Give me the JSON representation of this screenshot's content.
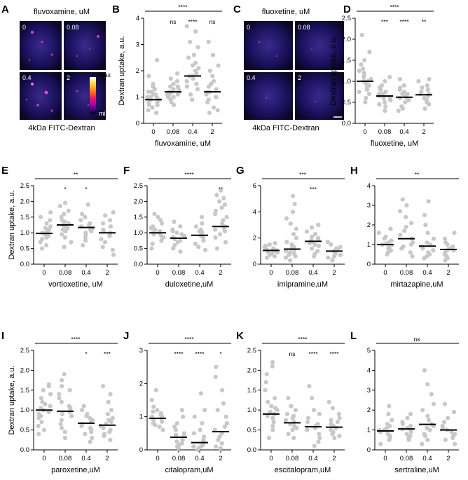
{
  "colors": {
    "dot": "#c8c8c8",
    "mean_line": "#000000",
    "axis": "#000000",
    "micro_bg": "#0a0624",
    "colorbar": [
      "#ffffe6",
      "#ffd23c",
      "#ff7814",
      "#e6146e",
      "#a00aa0",
      "#46007d",
      "#000000"
    ]
  },
  "micrographs": [
    {
      "letter": "A",
      "drug_title": "fluvoxamine, uM",
      "caption": "4kDa FITC-Dextran",
      "tiles": [
        "0",
        "0.08",
        "0.4",
        "2"
      ],
      "colorbar": {
        "max": "max",
        "min": "min"
      }
    },
    {
      "letter": "C",
      "drug_title": "fluoxetine, uM",
      "caption": "4kDa FITC-Dextran",
      "tiles": [
        "0",
        "0.08",
        "0.4",
        "2"
      ]
    }
  ],
  "chart_data": [
    {
      "letter": "B",
      "type": "scatter",
      "xlabel": "fluvoxamine, uM",
      "ylabel": "Dextran uptake, a.u.",
      "categories": [
        "0",
        "0.08",
        "0.4",
        "2"
      ],
      "ylim": [
        0,
        4
      ],
      "yticks": [
        0,
        1,
        2,
        3,
        4
      ],
      "means": [
        0.9,
        1.2,
        1.8,
        1.2
      ],
      "sig": [
        "",
        "ns",
        "****",
        "ns"
      ],
      "overall_sig": "****",
      "points": [
        [
          0.4,
          0.5,
          0.6,
          0.7,
          0.7,
          0.8,
          0.8,
          0.9,
          0.9,
          1.0,
          1.0,
          1.0,
          1.1,
          1.1,
          1.2,
          1.2,
          1.3,
          1.4,
          1.5,
          1.8,
          2.4
        ],
        [
          0.7,
          0.8,
          0.9,
          1.0,
          1.0,
          1.1,
          1.1,
          1.1,
          1.2,
          1.2,
          1.2,
          1.3,
          1.3,
          1.4,
          1.4,
          1.5,
          1.6,
          1.7,
          1.9
        ],
        [
          0.9,
          1.1,
          1.3,
          1.4,
          1.5,
          1.6,
          1.7,
          1.8,
          1.8,
          1.9,
          2.0,
          2.1,
          2.2,
          2.3,
          2.5,
          2.6,
          2.9,
          3.1,
          3.5,
          3.7
        ],
        [
          0.4,
          0.5,
          0.6,
          0.8,
          0.9,
          1.0,
          1.0,
          1.1,
          1.2,
          1.2,
          1.3,
          1.4,
          1.5,
          1.6,
          1.8,
          2.0,
          2.2,
          2.6,
          3.1
        ]
      ]
    },
    {
      "letter": "D",
      "type": "scatter",
      "xlabel": "fluoxetine, uM",
      "ylabel": "Dextran uptake, a.u.",
      "categories": [
        "0",
        "0.08",
        "0.4",
        "2"
      ],
      "ylim": [
        0,
        2.5
      ],
      "yticks": [
        0,
        0.5,
        1.0,
        1.5,
        2.0,
        2.5
      ],
      "means": [
        1.0,
        0.65,
        0.62,
        0.68
      ],
      "sig": [
        "",
        "***",
        "****",
        "**"
      ],
      "overall_sig": "****",
      "points": [
        [
          0.5,
          0.6,
          0.7,
          0.75,
          0.8,
          0.85,
          0.9,
          0.95,
          1.0,
          1.0,
          1.05,
          1.1,
          1.15,
          1.2,
          1.25,
          1.3,
          1.4,
          1.5,
          1.7,
          2.1
        ],
        [
          0.3,
          0.4,
          0.45,
          0.5,
          0.55,
          0.6,
          0.6,
          0.65,
          0.7,
          0.7,
          0.75,
          0.8,
          0.85,
          0.9,
          1.0,
          1.1
        ],
        [
          0.3,
          0.35,
          0.4,
          0.5,
          0.55,
          0.6,
          0.6,
          0.65,
          0.7,
          0.7,
          0.75,
          0.8,
          0.85,
          0.9,
          1.05
        ],
        [
          0.35,
          0.45,
          0.5,
          0.55,
          0.6,
          0.65,
          0.7,
          0.7,
          0.75,
          0.8,
          0.85,
          0.9,
          1.0,
          1.05
        ]
      ]
    },
    {
      "letter": "E",
      "type": "scatter",
      "xlabel": "vortioxetine, uM",
      "ylabel": "Dextran uptake, a.u.",
      "categories": [
        "0",
        "0.08",
        "0.4",
        "2"
      ],
      "ylim": [
        0,
        2.5
      ],
      "yticks": [
        0,
        0.5,
        1.0,
        1.5,
        2.0,
        2.5
      ],
      "means": [
        0.98,
        1.25,
        1.17,
        1.0
      ],
      "sig": [
        "",
        "*",
        "*",
        ""
      ],
      "overall_sig": "**",
      "points": [
        [
          0.5,
          0.6,
          0.7,
          0.8,
          0.85,
          0.9,
          0.95,
          1.0,
          1.0,
          1.05,
          1.1,
          1.15,
          1.2,
          1.3,
          1.4,
          1.5,
          1.65
        ],
        [
          0.55,
          0.7,
          0.85,
          0.95,
          1.05,
          1.1,
          1.15,
          1.2,
          1.25,
          1.3,
          1.35,
          1.4,
          1.5,
          1.6,
          1.7,
          1.85,
          1.95
        ],
        [
          0.6,
          0.75,
          0.85,
          0.95,
          1.0,
          1.05,
          1.1,
          1.15,
          1.2,
          1.25,
          1.3,
          1.4,
          1.5,
          1.6,
          1.9
        ],
        [
          0.3,
          0.45,
          0.55,
          0.7,
          0.8,
          0.9,
          0.95,
          1.0,
          1.05,
          1.1,
          1.2,
          1.3,
          1.4,
          1.55,
          1.65
        ]
      ]
    },
    {
      "letter": "F",
      "type": "scatter",
      "xlabel": "duloxetine,uM",
      "ylabel": "",
      "categories": [
        "0",
        "0.08",
        "0.4",
        "2"
      ],
      "ylim": [
        0,
        2.5
      ],
      "yticks": [
        0,
        0.5,
        1.0,
        1.5,
        2.0,
        2.5
      ],
      "means": [
        1.0,
        0.83,
        0.92,
        1.2
      ],
      "sig": [
        "",
        "",
        "",
        "**"
      ],
      "overall_sig": "****",
      "points": [
        [
          0.5,
          0.65,
          0.75,
          0.85,
          0.9,
          0.95,
          1.0,
          1.0,
          1.05,
          1.1,
          1.15,
          1.2,
          1.3,
          1.4,
          1.5,
          1.6
        ],
        [
          0.4,
          0.5,
          0.6,
          0.7,
          0.75,
          0.8,
          0.85,
          0.9,
          0.95,
          1.0,
          1.05,
          1.1,
          1.2,
          1.35
        ],
        [
          0.45,
          0.55,
          0.65,
          0.75,
          0.85,
          0.9,
          0.95,
          1.0,
          1.05,
          1.1,
          1.2,
          1.3,
          1.5
        ],
        [
          0.5,
          0.7,
          0.85,
          0.95,
          1.05,
          1.1,
          1.15,
          1.2,
          1.3,
          1.4,
          1.5,
          1.6,
          1.7,
          1.8,
          1.9,
          2.0,
          2.1,
          2.2,
          2.35
        ]
      ]
    },
    {
      "letter": "G",
      "type": "scatter",
      "xlabel": "imipramine,uM",
      "ylabel": "",
      "categories": [
        "0",
        "0.08",
        "0.4",
        "2"
      ],
      "ylim": [
        0,
        6
      ],
      "yticks": [
        0,
        2,
        4,
        6
      ],
      "means": [
        1.05,
        1.15,
        1.75,
        1.0
      ],
      "sig": [
        "",
        "",
        "***",
        ""
      ],
      "overall_sig": "***",
      "points": [
        [
          0.5,
          0.6,
          0.7,
          0.8,
          0.9,
          0.95,
          1.0,
          1.0,
          1.05,
          1.1,
          1.1,
          1.2,
          1.3,
          1.4,
          1.5,
          1.6
        ],
        [
          0.3,
          0.5,
          0.6,
          0.7,
          0.8,
          0.9,
          1.0,
          1.1,
          1.2,
          1.3,
          1.5,
          1.7,
          2.0,
          2.3,
          2.7,
          3.1,
          3.5,
          4.0,
          4.6,
          5.2
        ],
        [
          0.6,
          0.8,
          1.0,
          1.2,
          1.4,
          1.5,
          1.6,
          1.7,
          1.8,
          1.9,
          2.0,
          2.1,
          2.3,
          2.5,
          2.8,
          3.0
        ],
        [
          0.3,
          0.5,
          0.6,
          0.7,
          0.8,
          0.9,
          1.0,
          1.0,
          1.1,
          1.2,
          1.3,
          1.5,
          1.7
        ]
      ]
    },
    {
      "letter": "H",
      "type": "scatter",
      "xlabel": "mirtazapine,uM",
      "ylabel": "",
      "categories": [
        "0",
        "0.08",
        "0.4",
        "2"
      ],
      "ylim": [
        0,
        4
      ],
      "yticks": [
        0,
        1,
        2,
        3,
        4
      ],
      "means": [
        1.0,
        1.3,
        0.92,
        0.75
      ],
      "sig": [
        "",
        "",
        "",
        ""
      ],
      "overall_sig": "**",
      "points": [
        [
          0.5,
          0.6,
          0.7,
          0.8,
          0.9,
          0.95,
          1.0,
          1.05,
          1.1,
          1.2,
          1.3,
          1.4,
          1.6,
          1.8
        ],
        [
          0.4,
          0.6,
          0.8,
          0.9,
          1.0,
          1.1,
          1.3,
          1.5,
          1.7,
          1.9,
          2.1,
          2.4,
          2.7,
          3.0,
          3.3
        ],
        [
          0.3,
          0.4,
          0.5,
          0.6,
          0.7,
          0.8,
          0.9,
          1.0,
          1.1,
          1.3,
          1.6,
          2.0,
          2.5,
          3.2
        ],
        [
          0.2,
          0.3,
          0.4,
          0.5,
          0.6,
          0.7,
          0.75,
          0.8,
          0.9,
          1.0,
          1.1,
          1.3,
          1.6
        ]
      ]
    },
    {
      "letter": "I",
      "type": "scatter",
      "xlabel": "paroxetine,uM",
      "ylabel": "Dextran uptake, a.u.",
      "categories": [
        "0",
        "0.08",
        "0.4",
        "2"
      ],
      "ylim": [
        0,
        2.5
      ],
      "yticks": [
        0,
        0.5,
        1.0,
        1.5,
        2.0,
        2.5
      ],
      "means": [
        1.0,
        0.97,
        0.67,
        0.62
      ],
      "sig": [
        "",
        "",
        "*",
        "***"
      ],
      "overall_sig": "****",
      "points": [
        [
          0.4,
          0.5,
          0.6,
          0.7,
          0.8,
          0.85,
          0.9,
          0.95,
          1.0,
          1.05,
          1.1,
          1.15,
          1.2,
          1.3,
          1.4,
          1.5,
          1.6,
          1.65
        ],
        [
          0.3,
          0.45,
          0.55,
          0.65,
          0.75,
          0.85,
          0.9,
          0.95,
          1.0,
          1.05,
          1.1,
          1.2,
          1.3,
          1.4,
          1.5,
          1.6,
          1.75,
          1.9
        ],
        [
          0.2,
          0.3,
          0.4,
          0.45,
          0.5,
          0.55,
          0.6,
          0.65,
          0.7,
          0.75,
          0.8,
          0.85,
          0.9,
          1.0,
          1.1
        ],
        [
          0.25,
          0.35,
          0.4,
          0.45,
          0.5,
          0.55,
          0.6,
          0.65,
          0.7,
          0.75,
          0.8,
          0.9,
          1.0,
          1.2,
          1.4,
          1.6
        ]
      ]
    },
    {
      "letter": "J",
      "type": "scatter",
      "xlabel": "citalopram,uM",
      "ylabel": "",
      "categories": [
        "0",
        "0.08",
        "0.4",
        "2"
      ],
      "ylim": [
        0,
        3
      ],
      "yticks": [
        0,
        1,
        2,
        3
      ],
      "means": [
        0.95,
        0.38,
        0.22,
        0.55
      ],
      "sig": [
        "",
        "****",
        "****",
        "*"
      ],
      "overall_sig": "****",
      "points": [
        [
          0.6,
          0.7,
          0.75,
          0.8,
          0.85,
          0.9,
          0.95,
          1.0,
          1.0,
          1.05,
          1.1,
          1.15,
          1.2,
          1.3,
          1.5,
          1.8
        ],
        [
          0.05,
          0.1,
          0.15,
          0.2,
          0.25,
          0.3,
          0.35,
          0.4,
          0.45,
          0.5,
          0.6,
          0.7,
          0.8,
          1.0,
          1.2
        ],
        [
          0.0,
          0.05,
          0.1,
          0.1,
          0.15,
          0.2,
          0.25,
          0.3,
          0.4,
          0.5,
          0.6,
          0.8,
          1.0,
          1.2,
          1.7
        ],
        [
          0.05,
          0.1,
          0.2,
          0.3,
          0.4,
          0.5,
          0.6,
          0.7,
          0.8,
          1.0,
          1.2,
          1.4,
          1.8,
          2.2,
          2.5
        ]
      ]
    },
    {
      "letter": "K",
      "type": "scatter",
      "xlabel": "escitalopram,uM",
      "ylabel": "",
      "categories": [
        "0",
        "0.08",
        "0.4",
        "2"
      ],
      "ylim": [
        0,
        2.5
      ],
      "yticks": [
        0,
        0.5,
        1.0,
        1.5,
        2.0,
        2.5
      ],
      "means": [
        0.9,
        0.68,
        0.58,
        0.57
      ],
      "sig": [
        "",
        "ns",
        "****",
        "****"
      ],
      "overall_sig": "****",
      "points": [
        [
          0.3,
          0.5,
          0.6,
          0.7,
          0.8,
          0.85,
          0.9,
          0.95,
          1.0,
          1.05,
          1.1,
          1.2,
          1.3,
          1.5,
          1.7,
          1.9,
          2.1,
          2.2
        ],
        [
          0.3,
          0.4,
          0.5,
          0.55,
          0.6,
          0.65,
          0.7,
          0.75,
          0.8,
          0.85,
          0.9,
          1.0,
          1.1,
          1.3
        ],
        [
          0.1,
          0.2,
          0.3,
          0.4,
          0.5,
          0.55,
          0.6,
          0.65,
          0.7,
          0.8,
          0.9,
          1.0,
          1.3,
          1.6
        ],
        [
          0.3,
          0.35,
          0.4,
          0.45,
          0.5,
          0.55,
          0.6,
          0.65,
          0.7,
          0.75,
          0.8,
          0.9,
          1.05,
          1.2
        ]
      ]
    },
    {
      "letter": "L",
      "type": "scatter",
      "xlabel": "sertraline,uM",
      "ylabel": "",
      "categories": [
        "0",
        "0.08",
        "0.4",
        "2"
      ],
      "ylim": [
        0,
        5
      ],
      "yticks": [
        0,
        1,
        2,
        3,
        4,
        5
      ],
      "means": [
        0.95,
        1.05,
        1.28,
        1.0
      ],
      "sig": [
        "",
        "",
        "",
        ""
      ],
      "overall_sig": "ns",
      "points": [
        [
          0.3,
          0.5,
          0.6,
          0.7,
          0.8,
          0.9,
          1.0,
          1.0,
          1.1,
          1.2,
          1.3,
          1.5,
          1.8,
          2.2
        ],
        [
          0.5,
          0.6,
          0.7,
          0.8,
          0.9,
          1.0,
          1.05,
          1.1,
          1.2,
          1.3,
          1.4,
          1.6,
          1.8
        ],
        [
          0.3,
          0.5,
          0.7,
          0.8,
          1.0,
          1.1,
          1.2,
          1.3,
          1.5,
          1.7,
          2.0,
          2.3,
          2.8,
          3.3,
          4.0
        ],
        [
          0.3,
          0.5,
          0.6,
          0.7,
          0.8,
          0.9,
          1.0,
          1.1,
          1.2,
          1.4,
          1.6,
          1.9,
          2.3
        ]
      ]
    }
  ]
}
